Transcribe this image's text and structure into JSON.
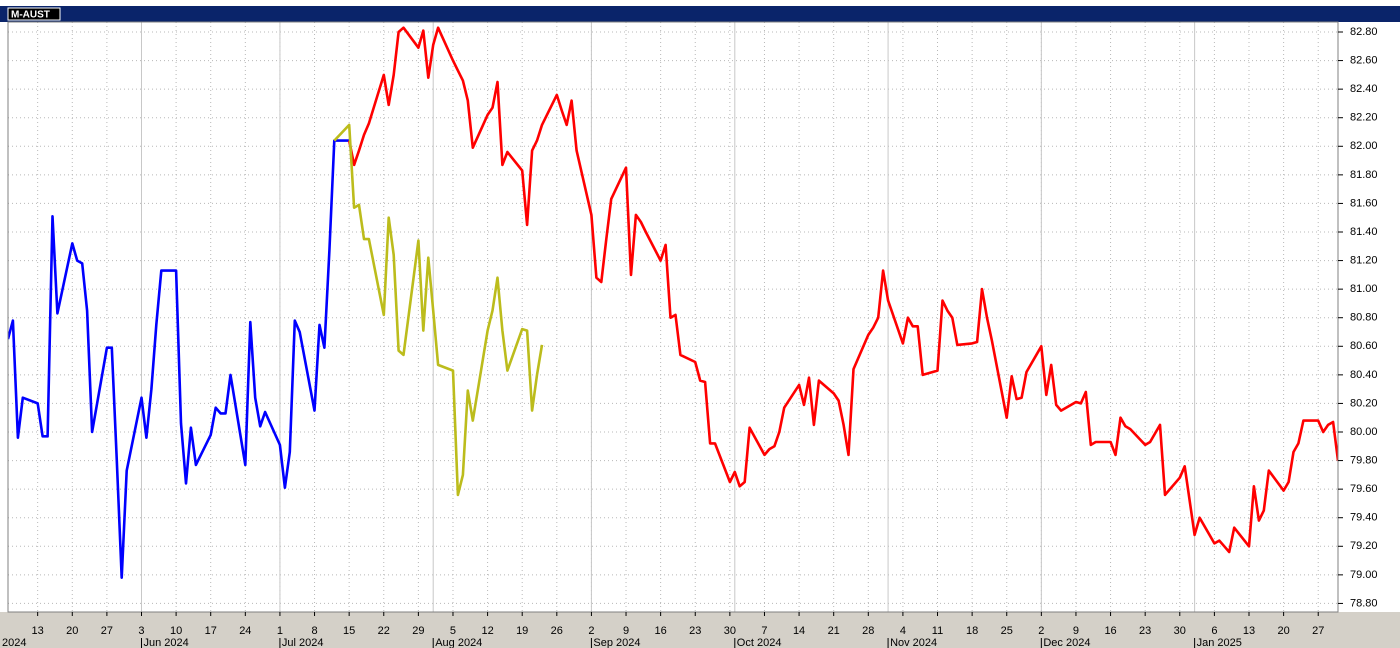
{
  "chart_data": {
    "type": "line",
    "title": "M-AUST",
    "grid": true,
    "xlim": [
      "2024-05-07",
      "2025-01-31"
    ],
    "ylim": [
      78.74,
      82.87
    ],
    "yticks": [
      {
        "value": 78.8,
        "label": "78.80"
      },
      {
        "value": 79.0,
        "label": "79.00"
      },
      {
        "value": 79.2,
        "label": "79.20"
      },
      {
        "value": 79.4,
        "label": "79.40"
      },
      {
        "value": 79.6,
        "label": "79.60"
      },
      {
        "value": 79.8,
        "label": "79.80"
      },
      {
        "value": 80.0,
        "label": "80.00"
      },
      {
        "value": 80.2,
        "label": "80.20"
      },
      {
        "value": 80.4,
        "label": "80.40"
      },
      {
        "value": 80.6,
        "label": "80.60"
      },
      {
        "value": 80.8,
        "label": "80.80"
      },
      {
        "value": 81.0,
        "label": "81.00"
      },
      {
        "value": 81.2,
        "label": "81.20"
      },
      {
        "value": 81.4,
        "label": "81.40"
      },
      {
        "value": 81.6,
        "label": "81.60"
      },
      {
        "value": 81.8,
        "label": "81.80"
      },
      {
        "value": 82.0,
        "label": "82.00"
      },
      {
        "value": 82.2,
        "label": "82.20"
      },
      {
        "value": 82.4,
        "label": "82.40"
      },
      {
        "value": 82.6,
        "label": "82.60"
      },
      {
        "value": 82.8,
        "label": "82.80"
      }
    ],
    "xticks": [
      {
        "value": "2024-05-13",
        "label": "13"
      },
      {
        "value": "2024-05-20",
        "label": "20"
      },
      {
        "value": "2024-05-27",
        "label": "27"
      },
      {
        "value": "2024-06-03",
        "label": "3"
      },
      {
        "value": "2024-06-10",
        "label": "10"
      },
      {
        "value": "2024-06-17",
        "label": "17"
      },
      {
        "value": "2024-06-24",
        "label": "24"
      },
      {
        "value": "2024-07-01",
        "label": "1"
      },
      {
        "value": "2024-07-08",
        "label": "8"
      },
      {
        "value": "2024-07-15",
        "label": "15"
      },
      {
        "value": "2024-07-22",
        "label": "22"
      },
      {
        "value": "2024-07-29",
        "label": "29"
      },
      {
        "value": "2024-08-05",
        "label": "5"
      },
      {
        "value": "2024-08-12",
        "label": "12"
      },
      {
        "value": "2024-08-19",
        "label": "19"
      },
      {
        "value": "2024-08-26",
        "label": "26"
      },
      {
        "value": "2024-09-02",
        "label": "2"
      },
      {
        "value": "2024-09-09",
        "label": "9"
      },
      {
        "value": "2024-09-16",
        "label": "16"
      },
      {
        "value": "2024-09-23",
        "label": "23"
      },
      {
        "value": "2024-09-30",
        "label": "30"
      },
      {
        "value": "2024-10-07",
        "label": "7"
      },
      {
        "value": "2024-10-14",
        "label": "14"
      },
      {
        "value": "2024-10-21",
        "label": "21"
      },
      {
        "value": "2024-10-28",
        "label": "28"
      },
      {
        "value": "2024-11-04",
        "label": "4"
      },
      {
        "value": "2024-11-11",
        "label": "11"
      },
      {
        "value": "2024-11-18",
        "label": "18"
      },
      {
        "value": "2024-11-25",
        "label": "25"
      },
      {
        "value": "2024-12-02",
        "label": "2"
      },
      {
        "value": "2024-12-09",
        "label": "9"
      },
      {
        "value": "2024-12-16",
        "label": "16"
      },
      {
        "value": "2024-12-23",
        "label": "23"
      },
      {
        "value": "2024-12-30",
        "label": "30"
      },
      {
        "value": "2025-01-06",
        "label": "6"
      },
      {
        "value": "2025-01-13",
        "label": "13"
      },
      {
        "value": "2025-01-20",
        "label": "20"
      },
      {
        "value": "2025-01-27",
        "label": "27"
      }
    ],
    "month_ticks": [
      {
        "value": "2024-05-01",
        "label": "2024"
      },
      {
        "value": "2024-06-03",
        "label": "Jun 2024"
      },
      {
        "value": "2024-07-01",
        "label": "Jul 2024"
      },
      {
        "value": "2024-08-01",
        "label": "Aug 2024"
      },
      {
        "value": "2024-09-02",
        "label": "Sep 2024"
      },
      {
        "value": "2024-10-01",
        "label": "Oct 2024"
      },
      {
        "value": "2024-11-01",
        "label": "Nov 2024"
      },
      {
        "value": "2024-12-02",
        "label": "Dec 2024"
      },
      {
        "value": "2025-01-02",
        "label": "Jan 2025"
      }
    ],
    "series": [
      {
        "color": "#0000ff",
        "x": [
          "2024-05-07",
          "2024-05-08",
          "2024-05-09",
          "2024-05-10",
          "2024-05-13",
          "2024-05-14",
          "2024-05-15",
          "2024-05-16",
          "2024-05-17",
          "2024-05-20",
          "2024-05-21",
          "2024-05-22",
          "2024-05-23",
          "2024-05-24",
          "2024-05-27",
          "2024-05-28",
          "2024-05-29",
          "2024-05-30",
          "2024-05-31",
          "2024-06-03",
          "2024-06-04",
          "2024-06-05",
          "2024-06-06",
          "2024-06-07",
          "2024-06-10",
          "2024-06-11",
          "2024-06-12",
          "2024-06-13",
          "2024-06-14",
          "2024-06-17",
          "2024-06-18",
          "2024-06-19",
          "2024-06-20",
          "2024-06-21",
          "2024-06-24",
          "2024-06-25",
          "2024-06-26",
          "2024-06-27",
          "2024-06-28",
          "2024-07-01",
          "2024-07-02",
          "2024-07-03",
          "2024-07-04",
          "2024-07-05",
          "2024-07-08",
          "2024-07-09",
          "2024-07-10",
          "2024-07-11",
          "2024-07-12",
          "2024-07-15"
        ],
        "values": [
          80.65,
          80.78,
          79.96,
          80.24,
          80.2,
          79.97,
          79.97,
          81.51,
          80.83,
          81.32,
          81.2,
          81.18,
          80.85,
          80.0,
          80.59,
          80.59,
          79.8,
          78.98,
          79.73,
          80.24,
          79.96,
          80.3,
          80.75,
          81.13,
          81.13,
          80.06,
          79.64,
          80.03,
          79.77,
          79.98,
          80.17,
          80.13,
          80.13,
          80.4,
          79.77,
          80.77,
          80.24,
          80.04,
          80.14,
          79.91,
          79.61,
          79.86,
          80.78,
          80.7,
          80.15,
          80.75,
          80.59,
          81.27,
          82.04,
          82.04
        ]
      },
      {
        "color": "#ff0000",
        "x": [
          "2024-07-15",
          "2024-07-16",
          "2024-07-17",
          "2024-07-18",
          "2024-07-19",
          "2024-07-22",
          "2024-07-23",
          "2024-07-24",
          "2024-07-25",
          "2024-07-26",
          "2024-07-29",
          "2024-07-30",
          "2024-07-31",
          "2024-08-01",
          "2024-08-02",
          "2024-08-05",
          "2024-08-06",
          "2024-08-07",
          "2024-08-08",
          "2024-08-09",
          "2024-08-12",
          "2024-08-13",
          "2024-08-14",
          "2024-08-15",
          "2024-08-16",
          "2024-08-19",
          "2024-08-20",
          "2024-08-21",
          "2024-08-22",
          "2024-08-23",
          "2024-08-26",
          "2024-08-27",
          "2024-08-28",
          "2024-08-29",
          "2024-08-30",
          "2024-09-02",
          "2024-09-03",
          "2024-09-04",
          "2024-09-05",
          "2024-09-06",
          "2024-09-09",
          "2024-09-10",
          "2024-09-11",
          "2024-09-12",
          "2024-09-13",
          "2024-09-16",
          "2024-09-17",
          "2024-09-18",
          "2024-09-19",
          "2024-09-20",
          "2024-09-23",
          "2024-09-24",
          "2024-09-25",
          "2024-09-26",
          "2024-09-27",
          "2024-09-30",
          "2024-10-01",
          "2024-10-02",
          "2024-10-03",
          "2024-10-04",
          "2024-10-07",
          "2024-10-08",
          "2024-10-09",
          "2024-10-10",
          "2024-10-11",
          "2024-10-14",
          "2024-10-15",
          "2024-10-16",
          "2024-10-17",
          "2024-10-18",
          "2024-10-21",
          "2024-10-22",
          "2024-10-23",
          "2024-10-24",
          "2024-10-25",
          "2024-10-28",
          "2024-10-29",
          "2024-10-30",
          "2024-10-31",
          "2024-11-01",
          "2024-11-04",
          "2024-11-05",
          "2024-11-06",
          "2024-11-07",
          "2024-11-08",
          "2024-11-11",
          "2024-11-12",
          "2024-11-13",
          "2024-11-14",
          "2024-11-15",
          "2024-11-18",
          "2024-11-19",
          "2024-11-20",
          "2024-11-21",
          "2024-11-22",
          "2024-11-25",
          "2024-11-26",
          "2024-11-27",
          "2024-11-28",
          "2024-11-29",
          "2024-12-02",
          "2024-12-03",
          "2024-12-04",
          "2024-12-05",
          "2024-12-06",
          "2024-12-09",
          "2024-12-10",
          "2024-12-11",
          "2024-12-12",
          "2024-12-13",
          "2024-12-16",
          "2024-12-17",
          "2024-12-18",
          "2024-12-19",
          "2024-12-20",
          "2024-12-23",
          "2024-12-24",
          "2024-12-26",
          "2024-12-27",
          "2024-12-30",
          "2024-12-31",
          "2025-01-02",
          "2025-01-03",
          "2025-01-06",
          "2025-01-07",
          "2025-01-08",
          "2025-01-09",
          "2025-01-10",
          "2025-01-13",
          "2025-01-14",
          "2025-01-15",
          "2025-01-16",
          "2025-01-17",
          "2025-01-20",
          "2025-01-21",
          "2025-01-22",
          "2025-01-23",
          "2025-01-24",
          "2025-01-27",
          "2025-01-28",
          "2025-01-29",
          "2025-01-30",
          "2025-01-31"
        ],
        "values": [
          82.04,
          81.87,
          81.97,
          82.08,
          82.16,
          82.5,
          82.29,
          82.5,
          82.8,
          82.83,
          82.69,
          82.81,
          82.48,
          82.71,
          82.83,
          82.6,
          82.53,
          82.46,
          82.32,
          81.99,
          82.22,
          82.27,
          82.45,
          81.87,
          81.96,
          81.83,
          81.45,
          81.97,
          82.04,
          82.15,
          82.36,
          82.25,
          82.15,
          82.32,
          81.97,
          81.52,
          81.08,
          81.05,
          81.35,
          81.63,
          81.85,
          81.1,
          81.52,
          81.47,
          81.4,
          81.2,
          81.31,
          80.8,
          80.82,
          80.54,
          80.49,
          80.36,
          80.35,
          79.92,
          79.92,
          79.65,
          79.72,
          79.62,
          79.65,
          80.03,
          79.84,
          79.88,
          79.9,
          80.0,
          80.17,
          80.33,
          80.19,
          80.38,
          80.05,
          80.36,
          80.27,
          80.22,
          80.05,
          79.84,
          80.44,
          80.68,
          80.73,
          80.8,
          81.13,
          80.92,
          80.62,
          80.8,
          80.74,
          80.74,
          80.4,
          80.43,
          80.92,
          80.85,
          80.8,
          80.61,
          80.62,
          80.63,
          81.0,
          80.8,
          80.64,
          80.1,
          80.39,
          80.23,
          80.24,
          80.42,
          80.6,
          80.26,
          80.47,
          80.19,
          80.15,
          80.21,
          80.2,
          80.28,
          79.91,
          79.93,
          79.93,
          79.84,
          80.1,
          80.04,
          80.02,
          79.91,
          79.93,
          80.05,
          79.56,
          79.68,
          79.76,
          79.28,
          79.4,
          79.22,
          79.24,
          79.2,
          79.16,
          79.33,
          79.2,
          79.62,
          79.38,
          79.45,
          79.73,
          79.59,
          79.65,
          79.86,
          79.92,
          80.08,
          80.08,
          80.0,
          80.05,
          80.07,
          79.8
        ]
      },
      {
        "color": "#bcbc1c",
        "x": [
          "2024-07-12",
          "2024-07-15",
          "2024-07-16",
          "2024-07-17",
          "2024-07-18",
          "2024-07-19",
          "2024-07-22",
          "2024-07-23",
          "2024-07-24",
          "2024-07-25",
          "2024-07-26",
          "2024-07-29",
          "2024-07-30",
          "2024-07-31",
          "2024-08-01",
          "2024-08-02",
          "2024-08-05",
          "2024-08-06",
          "2024-08-07",
          "2024-08-08",
          "2024-08-09",
          "2024-08-12",
          "2024-08-13",
          "2024-08-14",
          "2024-08-15",
          "2024-08-16",
          "2024-08-19",
          "2024-08-20",
          "2024-08-21",
          "2024-08-22",
          "2024-08-23"
        ],
        "values": [
          82.04,
          82.15,
          81.57,
          81.59,
          81.35,
          81.35,
          80.82,
          81.5,
          81.24,
          80.57,
          80.54,
          81.34,
          80.71,
          81.22,
          80.85,
          80.47,
          80.43,
          79.56,
          79.7,
          80.29,
          80.08,
          80.71,
          80.85,
          81.08,
          80.71,
          80.43,
          80.72,
          80.71,
          80.15,
          80.4,
          80.61
        ]
      }
    ]
  }
}
